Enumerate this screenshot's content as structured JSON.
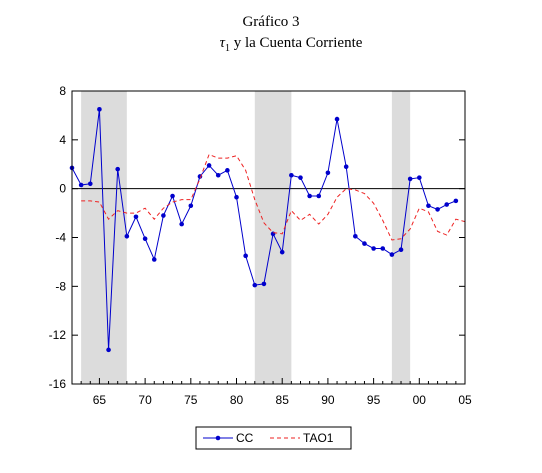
{
  "chart_data": {
    "type": "line",
    "title": "Gráfico 3",
    "subtitle_symbol": "τ",
    "subtitle_subscript": "1",
    "subtitle_text": "y la Cuenta Corriente",
    "xlim": [
      1962,
      2005
    ],
    "ylim": [
      -16,
      8
    ],
    "x_ticks": [
      1965,
      1970,
      1975,
      1980,
      1985,
      1990,
      1995,
      2000,
      2005
    ],
    "x_tick_labels": [
      "65",
      "70",
      "75",
      "80",
      "85",
      "90",
      "95",
      "00",
      "05"
    ],
    "y_ticks": [
      8,
      4,
      0,
      -4,
      -8,
      -12,
      -16
    ],
    "y_tick_labels": [
      "8",
      "4",
      "0",
      "-4",
      "-8",
      "-12",
      "-16"
    ],
    "shaded_regions": [
      [
        1963,
        1968
      ],
      [
        1982,
        1986
      ],
      [
        1997,
        1999
      ]
    ],
    "zero_line": true,
    "legend_position": "bottom-center",
    "series": [
      {
        "name": "CC",
        "color": "#0000cc",
        "style": "solid-markers",
        "x": [
          1962,
          1963,
          1964,
          1965,
          1966,
          1967,
          1968,
          1969,
          1970,
          1971,
          1972,
          1973,
          1974,
          1975,
          1976,
          1977,
          1978,
          1979,
          1980,
          1981,
          1982,
          1983,
          1984,
          1985,
          1986,
          1987,
          1988,
          1989,
          1990,
          1991,
          1992,
          1993,
          1994,
          1995,
          1996,
          1997,
          1998,
          1999,
          2000,
          2001,
          2002,
          2003,
          2004
        ],
        "values": [
          1.7,
          0.3,
          0.4,
          6.5,
          -13.2,
          1.6,
          -3.9,
          -2.3,
          -4.1,
          -5.8,
          -2.2,
          -0.6,
          -2.9,
          -1.4,
          1.0,
          1.9,
          1.1,
          1.5,
          -0.7,
          -5.5,
          -7.9,
          -7.8,
          -3.7,
          -5.2,
          1.1,
          0.9,
          -0.6,
          -0.6,
          1.3,
          5.7,
          1.8,
          -3.9,
          -4.5,
          -4.9,
          -4.9,
          -5.4,
          -5.0,
          0.8,
          0.9,
          -1.4,
          -1.7,
          -1.3,
          -1.0
        ]
      },
      {
        "name": "TAO1",
        "color": "#ee2222",
        "style": "dashed",
        "x": [
          1963,
          1964,
          1965,
          1966,
          1967,
          1968,
          1969,
          1970,
          1971,
          1972,
          1973,
          1974,
          1975,
          1976,
          1977,
          1978,
          1979,
          1980,
          1981,
          1982,
          1983,
          1984,
          1985,
          1986,
          1987,
          1988,
          1989,
          1990,
          1991,
          1992,
          1993,
          1994,
          1995,
          1996,
          1997,
          1998,
          1999,
          2000,
          2001,
          2002,
          2003,
          2004,
          2005
        ],
        "values": [
          -1.0,
          -1.0,
          -1.1,
          -2.5,
          -1.8,
          -2.0,
          -2.0,
          -1.6,
          -2.5,
          -1.6,
          -1.1,
          -0.9,
          -0.9,
          0.8,
          2.8,
          2.5,
          2.5,
          2.7,
          1.5,
          -0.9,
          -2.8,
          -3.6,
          -3.7,
          -1.8,
          -2.6,
          -2.1,
          -2.9,
          -2.1,
          -0.7,
          0.0,
          -0.1,
          -0.4,
          -1.2,
          -2.6,
          -4.2,
          -4.1,
          -3.3,
          -1.6,
          -1.9,
          -3.5,
          -3.8,
          -2.5,
          -2.7
        ]
      }
    ]
  }
}
